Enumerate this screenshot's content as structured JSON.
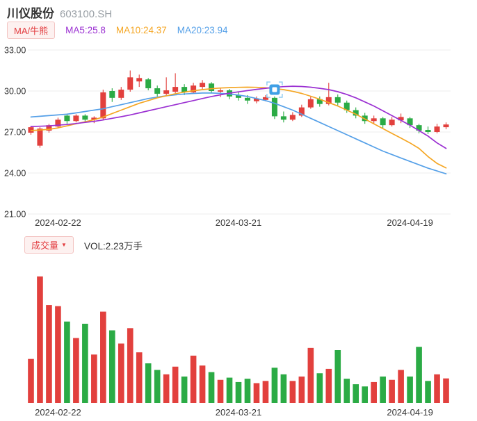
{
  "header": {
    "title": "川仪股份",
    "code": "603100.SH"
  },
  "indicators": {
    "badge": "MA/牛熊"
  },
  "volume_header": {
    "badge": "成交量",
    "dropdown_icon": "▼",
    "vol": "VOL:2.23万手"
  },
  "colors": {
    "up": "#e2403d",
    "down": "#2bab45",
    "ma5": "#9b30d2",
    "ma10": "#f5a623",
    "ma20": "#55a0e8",
    "grid": "#ececec",
    "axis_text": "#333333",
    "marker": "#3fa0e6"
  },
  "chart_data": {
    "type": "candlestick",
    "title": "川仪股份 603100.SH",
    "ylim": [
      21,
      33
    ],
    "price_ticks": [
      {
        "value": 33,
        "label": "33.00"
      },
      {
        "value": 30,
        "label": "30.00"
      },
      {
        "value": 27,
        "label": "27.00"
      },
      {
        "value": 24,
        "label": "24.00"
      },
      {
        "value": 21,
        "label": "21.00"
      }
    ],
    "x_ticks": [
      {
        "index": 3,
        "label": "2024-02-22"
      },
      {
        "index": 23,
        "label": "2024-03-21"
      },
      {
        "index": 42,
        "label": "2024-04-19"
      }
    ],
    "legend": [
      {
        "key": "ma5",
        "label": "MA5:25.8"
      },
      {
        "key": "ma10",
        "label": "MA10:24.37"
      },
      {
        "key": "ma20",
        "label": "MA20:23.94"
      }
    ],
    "dates": [
      "2024-02-19",
      "2024-02-20",
      "2024-02-21",
      "2024-02-22",
      "2024-02-23",
      "2024-02-26",
      "2024-02-27",
      "2024-02-28",
      "2024-02-29",
      "2024-03-01",
      "2024-03-04",
      "2024-03-05",
      "2024-03-06",
      "2024-03-07",
      "2024-03-08",
      "2024-03-11",
      "2024-03-12",
      "2024-03-13",
      "2024-03-14",
      "2024-03-15",
      "2024-03-18",
      "2024-03-19",
      "2024-03-20",
      "2024-03-21",
      "2024-03-22",
      "2024-03-25",
      "2024-03-26",
      "2024-03-27",
      "2024-03-28",
      "2024-03-29",
      "2024-04-01",
      "2024-04-02",
      "2024-04-03",
      "2024-04-08",
      "2024-04-09",
      "2024-04-10",
      "2024-04-11",
      "2024-04-12",
      "2024-04-15",
      "2024-04-16",
      "2024-04-17",
      "2024-04-18",
      "2024-04-19",
      "2024-04-22",
      "2024-04-23",
      "2024-04-24",
      "2024-04-25"
    ],
    "candles": [
      [
        26.95,
        27.45,
        26.8,
        27.35
      ],
      [
        26.0,
        27.35,
        25.85,
        27.25
      ],
      [
        27.1,
        27.6,
        26.95,
        27.5
      ],
      [
        27.4,
        28.05,
        27.3,
        27.9
      ],
      [
        28.2,
        28.35,
        27.6,
        27.8
      ],
      [
        27.8,
        28.3,
        27.7,
        28.2
      ],
      [
        28.2,
        28.3,
        27.7,
        27.9
      ],
      [
        27.9,
        28.15,
        27.65,
        28.05
      ],
      [
        28.0,
        30.1,
        27.9,
        29.9
      ],
      [
        30.0,
        30.2,
        29.2,
        29.5
      ],
      [
        29.5,
        30.3,
        29.35,
        30.1
      ],
      [
        30.1,
        31.5,
        29.95,
        31.0
      ],
      [
        30.7,
        31.2,
        30.3,
        30.95
      ],
      [
        30.85,
        30.95,
        30.05,
        30.2
      ],
      [
        30.2,
        30.4,
        29.6,
        29.8
      ],
      [
        29.8,
        31.0,
        29.7,
        30.05
      ],
      [
        29.95,
        31.3,
        29.85,
        30.3
      ],
      [
        30.3,
        30.5,
        29.7,
        29.9
      ],
      [
        29.9,
        30.6,
        29.8,
        30.4
      ],
      [
        30.3,
        30.8,
        30.1,
        30.6
      ],
      [
        30.55,
        30.65,
        29.85,
        30.0
      ],
      [
        29.95,
        30.25,
        29.55,
        30.05
      ],
      [
        30.05,
        30.15,
        29.4,
        29.6
      ],
      [
        29.7,
        29.9,
        29.3,
        29.5
      ],
      [
        29.5,
        29.7,
        29.05,
        29.3
      ],
      [
        29.25,
        29.6,
        29.1,
        29.45
      ],
      [
        29.35,
        29.7,
        29.25,
        29.55
      ],
      [
        29.5,
        29.6,
        27.95,
        28.15
      ],
      [
        28.15,
        28.5,
        27.7,
        27.9
      ],
      [
        27.9,
        28.45,
        27.8,
        28.25
      ],
      [
        28.2,
        29.0,
        28.1,
        28.8
      ],
      [
        28.8,
        29.6,
        28.7,
        29.4
      ],
      [
        29.4,
        29.6,
        28.85,
        29.05
      ],
      [
        29.05,
        30.6,
        28.95,
        29.55
      ],
      [
        29.55,
        29.75,
        28.95,
        29.15
      ],
      [
        29.15,
        29.3,
        28.4,
        28.6
      ],
      [
        28.6,
        28.8,
        28.0,
        28.2
      ],
      [
        28.2,
        28.4,
        27.6,
        27.8
      ],
      [
        27.8,
        28.2,
        27.6,
        28.0
      ],
      [
        28.0,
        28.1,
        27.3,
        27.5
      ],
      [
        27.5,
        28.1,
        27.4,
        27.9
      ],
      [
        27.85,
        28.35,
        27.65,
        28.1
      ],
      [
        28.0,
        28.1,
        27.3,
        27.5
      ],
      [
        27.5,
        27.6,
        26.9,
        27.1
      ],
      [
        27.15,
        27.4,
        26.85,
        27.0
      ],
      [
        27.0,
        27.6,
        26.9,
        27.4
      ],
      [
        27.35,
        27.7,
        27.2,
        27.55
      ]
    ],
    "ma5": [
      27.4,
      27.42,
      27.45,
      27.5,
      27.55,
      27.62,
      27.7,
      27.78,
      27.88,
      28.0,
      28.12,
      28.25,
      28.4,
      28.55,
      28.7,
      28.85,
      29.0,
      29.15,
      29.3,
      29.45,
      29.6,
      29.72,
      29.84,
      29.94,
      30.03,
      30.12,
      30.2,
      30.27,
      30.32,
      30.35,
      30.33,
      30.28,
      30.2,
      30.1,
      29.95,
      29.75,
      29.5,
      29.2,
      28.9,
      28.55,
      28.2,
      27.85,
      27.5,
      27.1,
      26.7,
      26.2,
      25.8
    ],
    "ma10": [
      27.1,
      27.15,
      27.2,
      27.3,
      27.45,
      27.6,
      27.75,
      27.9,
      28.1,
      28.35,
      28.6,
      28.85,
      29.1,
      29.3,
      29.5,
      29.65,
      29.8,
      29.92,
      30.02,
      30.1,
      30.17,
      30.22,
      30.25,
      30.27,
      30.28,
      30.27,
      30.24,
      30.18,
      30.1,
      29.98,
      29.82,
      29.62,
      29.4,
      29.15,
      28.9,
      28.6,
      28.3,
      27.95,
      27.6,
      27.25,
      26.9,
      26.55,
      26.2,
      25.8,
      25.2,
      24.7,
      24.37
    ],
    "ma20": [
      28.1,
      28.15,
      28.2,
      28.25,
      28.3,
      28.4,
      28.5,
      28.6,
      28.7,
      28.85,
      29.0,
      29.15,
      29.3,
      29.45,
      29.55,
      29.65,
      29.72,
      29.78,
      29.82,
      29.85,
      29.85,
      29.83,
      29.78,
      29.7,
      29.6,
      29.45,
      29.3,
      29.1,
      28.85,
      28.6,
      28.3,
      28.0,
      27.7,
      27.4,
      27.1,
      26.8,
      26.5,
      26.2,
      25.9,
      25.6,
      25.35,
      25.1,
      24.85,
      24.6,
      24.35,
      24.15,
      23.94
    ],
    "volumes": [
      4.0,
      11.5,
      8.9,
      8.8,
      7.4,
      5.9,
      7.2,
      4.4,
      8.3,
      6.6,
      5.4,
      6.8,
      4.6,
      3.6,
      3.0,
      2.6,
      3.3,
      2.4,
      4.3,
      3.4,
      2.8,
      2.1,
      2.3,
      1.9,
      2.2,
      1.8,
      2.0,
      3.2,
      2.6,
      2.0,
      2.4,
      5.0,
      2.7,
      3.1,
      4.8,
      2.2,
      1.7,
      1.5,
      1.9,
      2.4,
      2.1,
      3.0,
      2.4,
      5.1,
      2.0,
      2.6,
      2.23
    ],
    "volume_max": 12,
    "volume_unit": "万手",
    "marker": {
      "index": 27,
      "price": 30.1
    }
  }
}
